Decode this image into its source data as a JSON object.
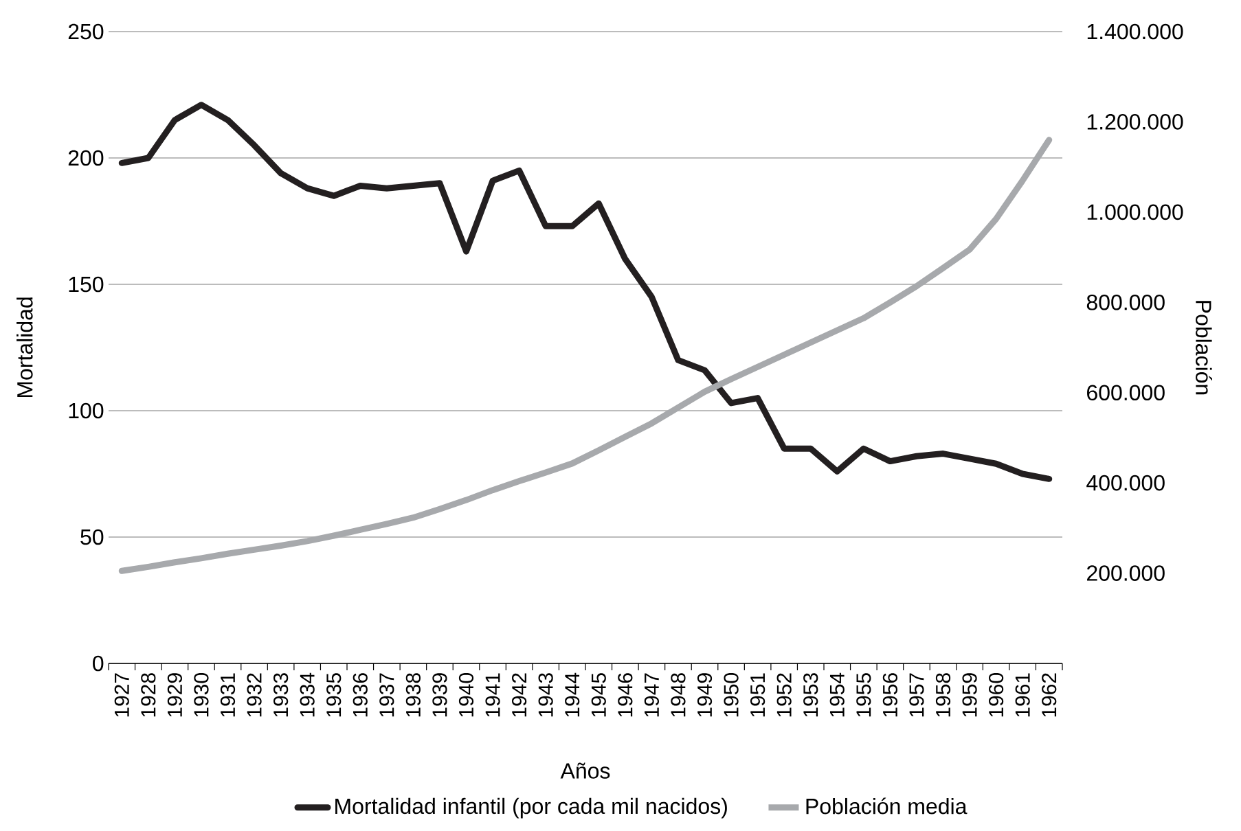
{
  "chart_data": {
    "type": "line",
    "xlabel": "Años",
    "ylabel": "Mortalidad",
    "y2label": "Población",
    "categories": [
      "1927",
      "1928",
      "1929",
      "1930",
      "1931",
      "1932",
      "1933",
      "1934",
      "1935",
      "1936",
      "1937",
      "1938",
      "1939",
      "1940",
      "1941",
      "1942",
      "1943",
      "1944",
      "1945",
      "1946",
      "1947",
      "1948",
      "1949",
      "1950",
      "1951",
      "1952",
      "1953",
      "1954",
      "1955",
      "1956",
      "1957",
      "1958",
      "1959",
      "1960",
      "1961",
      "1962"
    ],
    "series": [
      {
        "name": "Mortalidad infantil (por cada mil nacidos)",
        "color": "#231f20",
        "values": [
          198,
          200,
          215,
          221,
          215,
          205,
          194,
          188,
          185,
          189,
          188,
          189,
          190,
          163,
          191,
          195,
          173,
          173,
          182,
          160,
          145,
          120,
          116,
          103,
          105,
          85,
          85,
          76,
          85,
          80,
          82,
          83,
          81,
          79,
          75,
          73
        ]
      },
      {
        "name": "Población media",
        "color": "#a7a9ac",
        "axis": "y2",
        "values": [
          205000,
          214000,
          224000,
          233000,
          243000,
          252000,
          261000,
          271000,
          283000,
          296000,
          309000,
          323000,
          342000,
          362000,
          384000,
          404000,
          423000,
          443000,
          472000,
          502000,
          532000,
          567000,
          602000,
          630000,
          657000,
          684000,
          711000,
          738000,
          765000,
          800000,
          836000,
          876000,
          917000,
          985000,
          1070000,
          1160000
        ]
      }
    ],
    "ylim": [
      0,
      250
    ],
    "yticks": [
      0,
      50,
      100,
      150,
      200,
      250
    ],
    "y2lim": [
      0,
      1400000
    ],
    "y2ticks": [
      {
        "value": 200000,
        "label": "200.000"
      },
      {
        "value": 400000,
        "label": "400.000"
      },
      {
        "value": 600000,
        "label": "600.000"
      },
      {
        "value": 800000,
        "label": "800.000"
      },
      {
        "value": 1000000,
        "label": "1.000.000"
      },
      {
        "value": 1200000,
        "label": "1.200.000"
      },
      {
        "value": 1400000,
        "label": "1.400.000"
      }
    ],
    "grid": "y",
    "legend": "bottom",
    "line_style": "solid",
    "marker": "none"
  }
}
